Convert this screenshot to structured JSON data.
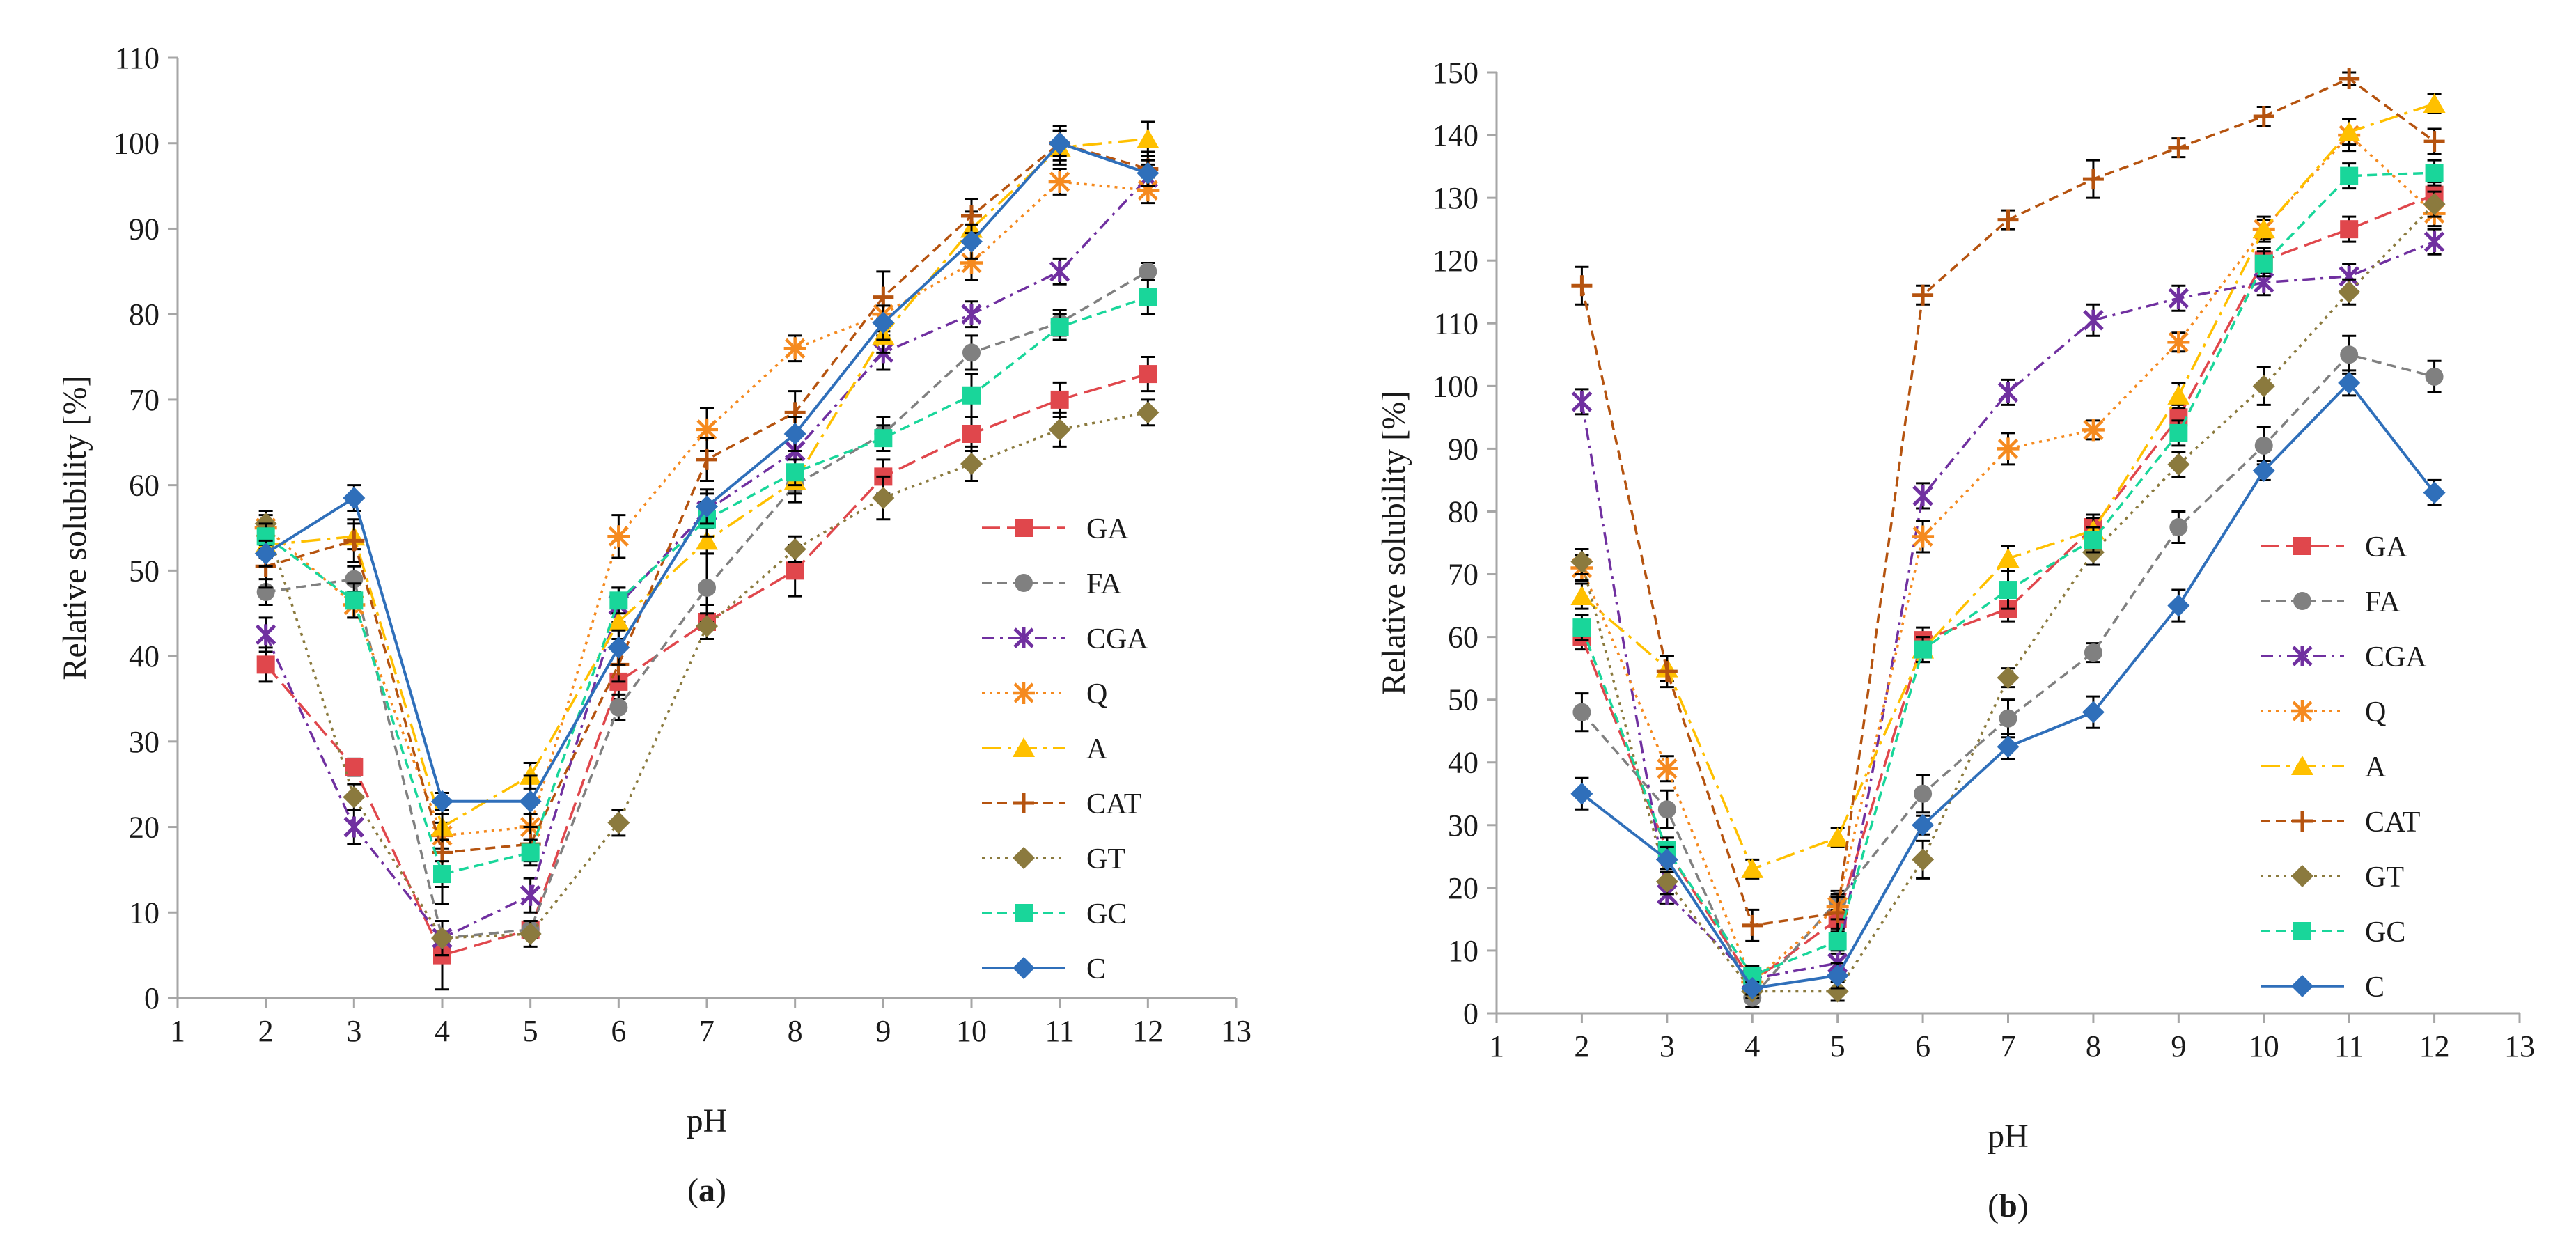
{
  "figure": {
    "colors": {
      "GA": "#e0474c",
      "FA": "#808080",
      "CGA": "#7030a0",
      "Q": "#f58a1f",
      "A": "#ffc000",
      "CAT": "#b5530f",
      "GT": "#8b7a3e",
      "GC": "#19d69a",
      "C": "#2f6fba",
      "axis": "#a6a6a6",
      "error_bar": "#000000"
    },
    "markers": {
      "GA": "square",
      "FA": "circle",
      "CGA": "star",
      "Q": "asterisk",
      "A": "triangle",
      "CAT": "plus",
      "GT": "diamond",
      "GC": "square",
      "C": "diamond"
    },
    "dash": {
      "GA": "long-dash",
      "FA": "dash",
      "CGA": "dash-dot",
      "Q": "dot",
      "A": "long-dash-dot",
      "CAT": "dash",
      "GT": "dot",
      "GC": "dash",
      "C": "solid"
    }
  },
  "chart_data": [
    {
      "type": "line",
      "panel_label": "(a)",
      "panel_letter": "a",
      "xlabel": "pH",
      "ylabel": "Relative solubility [%]",
      "xlim": [
        1,
        13
      ],
      "ylim": [
        0,
        110
      ],
      "xticks": [
        1,
        2,
        3,
        4,
        5,
        6,
        7,
        8,
        9,
        10,
        11,
        12,
        13
      ],
      "yticks": [
        0,
        10,
        20,
        30,
        40,
        50,
        60,
        70,
        80,
        90,
        100,
        110
      ],
      "x": [
        2,
        3,
        4,
        5,
        6,
        7,
        8,
        9,
        10,
        11,
        12
      ],
      "legend_position": "bottom-right",
      "series": [
        {
          "name": "GA",
          "values": [
            39,
            27,
            5,
            8,
            37,
            44,
            50,
            61,
            66,
            70,
            73
          ],
          "errors": [
            2,
            1,
            4,
            1,
            2,
            2,
            3,
            2,
            2,
            2,
            2
          ]
        },
        {
          "name": "FA",
          "values": [
            47.5,
            49,
            7,
            8,
            34,
            48,
            60,
            66,
            75.5,
            79,
            85
          ],
          "errors": [
            1.5,
            1.5,
            2,
            1,
            1.5,
            4,
            2,
            2,
            2,
            1.5,
            1
          ]
        },
        {
          "name": "CGA",
          "values": [
            42.5,
            20,
            7,
            12,
            46,
            57,
            64,
            75.5,
            80,
            85,
            96
          ],
          "errors": [
            2,
            2,
            2,
            2,
            2,
            2,
            2,
            2,
            1.5,
            1.5,
            1.5
          ]
        },
        {
          "name": "Q",
          "values": [
            55,
            46,
            19,
            20,
            54,
            66.5,
            76,
            80,
            86,
            95.5,
            94.5
          ],
          "errors": [
            1.5,
            1.5,
            1.5,
            1.5,
            2.5,
            2.5,
            1.5,
            2,
            2,
            1.5,
            1.5
          ]
        },
        {
          "name": "A",
          "values": [
            53,
            54,
            20,
            26,
            44,
            53.5,
            60.5,
            77.5,
            90,
            99.5,
            100.5
          ],
          "errors": [
            1.5,
            1.5,
            1.5,
            1.5,
            2,
            1.5,
            1.5,
            2,
            2,
            2,
            2
          ]
        },
        {
          "name": "CAT",
          "values": [
            50.5,
            53.5,
            17,
            18,
            39,
            63,
            68.5,
            82,
            91.5,
            100,
            97
          ],
          "errors": [
            2.5,
            2.5,
            6,
            2,
            2,
            2.5,
            2.5,
            3,
            2,
            2,
            2
          ]
        },
        {
          "name": "GT",
          "values": [
            55.5,
            23.5,
            7,
            7.5,
            20.5,
            43.5,
            52.5,
            58.5,
            62.5,
            66.5,
            68.5
          ],
          "errors": [
            1.5,
            1.5,
            2,
            1.5,
            1.5,
            1.5,
            1.5,
            2.5,
            2,
            2,
            1.5
          ]
        },
        {
          "name": "GC",
          "values": [
            54,
            46.5,
            14.5,
            17,
            46.5,
            56,
            61.5,
            65.5,
            70.5,
            78.5,
            82
          ],
          "errors": [
            1.5,
            2,
            1.5,
            1.5,
            1.5,
            2,
            1.5,
            1.5,
            2.5,
            1.5,
            2
          ]
        },
        {
          "name": "C",
          "values": [
            52,
            58.5,
            23,
            23,
            41,
            57.5,
            66,
            79,
            88.5,
            100,
            96.5
          ],
          "errors": [
            1.5,
            1.5,
            1,
            3,
            2,
            2,
            2,
            2,
            2,
            1.5,
            1.5
          ]
        }
      ]
    },
    {
      "type": "line",
      "panel_label": "(b)",
      "panel_letter": "b",
      "xlabel": "pH",
      "ylabel": "Relative solubility [%]",
      "xlim": [
        1,
        13
      ],
      "ylim": [
        0,
        150
      ],
      "xticks": [
        1,
        2,
        3,
        4,
        5,
        6,
        7,
        8,
        9,
        10,
        11,
        12,
        13
      ],
      "yticks": [
        0,
        10,
        20,
        30,
        40,
        50,
        60,
        70,
        80,
        90,
        100,
        110,
        120,
        130,
        140,
        150
      ],
      "x": [
        2,
        3,
        4,
        5,
        6,
        7,
        8,
        9,
        10,
        11,
        12
      ],
      "legend_position": "bottom-right",
      "series": [
        {
          "name": "GA",
          "values": [
            60,
            26,
            5,
            15,
            59.5,
            64.5,
            77.5,
            95,
            120,
            125,
            130.5
          ],
          "errors": [
            2,
            2,
            2,
            2,
            2,
            2,
            2,
            2,
            2,
            2,
            2
          ]
        },
        {
          "name": "FA",
          "values": [
            48,
            32.5,
            2.5,
            18,
            35,
            47,
            57.5,
            77.5,
            90.5,
            105,
            101.5
          ],
          "errors": [
            3,
            3,
            1.5,
            1.5,
            3,
            3,
            1.5,
            2.5,
            3,
            3,
            2.5
          ]
        },
        {
          "name": "CGA",
          "values": [
            97.5,
            19,
            5.5,
            8,
            82.5,
            99,
            110.5,
            114,
            116.5,
            117.5,
            123
          ],
          "errors": [
            2,
            1.5,
            1.5,
            1.5,
            2,
            2,
            2.5,
            2,
            2,
            2,
            2
          ]
        },
        {
          "name": "Q",
          "values": [
            71,
            39,
            5,
            17,
            76,
            90,
            93,
            107,
            125,
            140,
            127.5
          ],
          "errors": [
            2,
            2,
            1,
            2,
            2.5,
            2.5,
            1.5,
            1.5,
            1.5,
            2.5,
            2
          ]
        },
        {
          "name": "A",
          "values": [
            66.5,
            55,
            23,
            28,
            58,
            72.5,
            77,
            98.5,
            125,
            140.5,
            145
          ],
          "errors": [
            2,
            2,
            1.5,
            1.5,
            2,
            2,
            2,
            2,
            2,
            2,
            1.5
          ]
        },
        {
          "name": "CAT",
          "values": [
            116,
            54.5,
            14,
            16,
            114.5,
            126.5,
            133,
            138,
            143,
            149,
            139
          ],
          "errors": [
            3,
            2.5,
            2.5,
            2.5,
            1.5,
            1.5,
            3,
            1.5,
            1.5,
            1,
            2
          ]
        },
        {
          "name": "GT",
          "values": [
            72,
            21,
            3.5,
            3.5,
            24.5,
            53.5,
            73.5,
            87.5,
            100,
            115,
            129
          ],
          "errors": [
            2,
            2,
            1,
            1.5,
            3,
            1.5,
            2,
            2,
            3,
            2,
            2
          ]
        },
        {
          "name": "GC",
          "values": [
            61.5,
            26,
            6,
            11.5,
            58,
            67.5,
            75.5,
            92.5,
            119.5,
            133.5,
            134
          ],
          "errors": [
            2,
            2,
            1.5,
            1.5,
            2,
            3,
            2,
            2,
            2,
            2,
            2
          ]
        },
        {
          "name": "C",
          "values": [
            35,
            24.5,
            4,
            6,
            30,
            42.5,
            48,
            65,
            86.5,
            100.5,
            83
          ],
          "errors": [
            2.5,
            2,
            1,
            2,
            1.5,
            2,
            2.5,
            2.5,
            1.5,
            2,
            2
          ]
        }
      ]
    }
  ]
}
